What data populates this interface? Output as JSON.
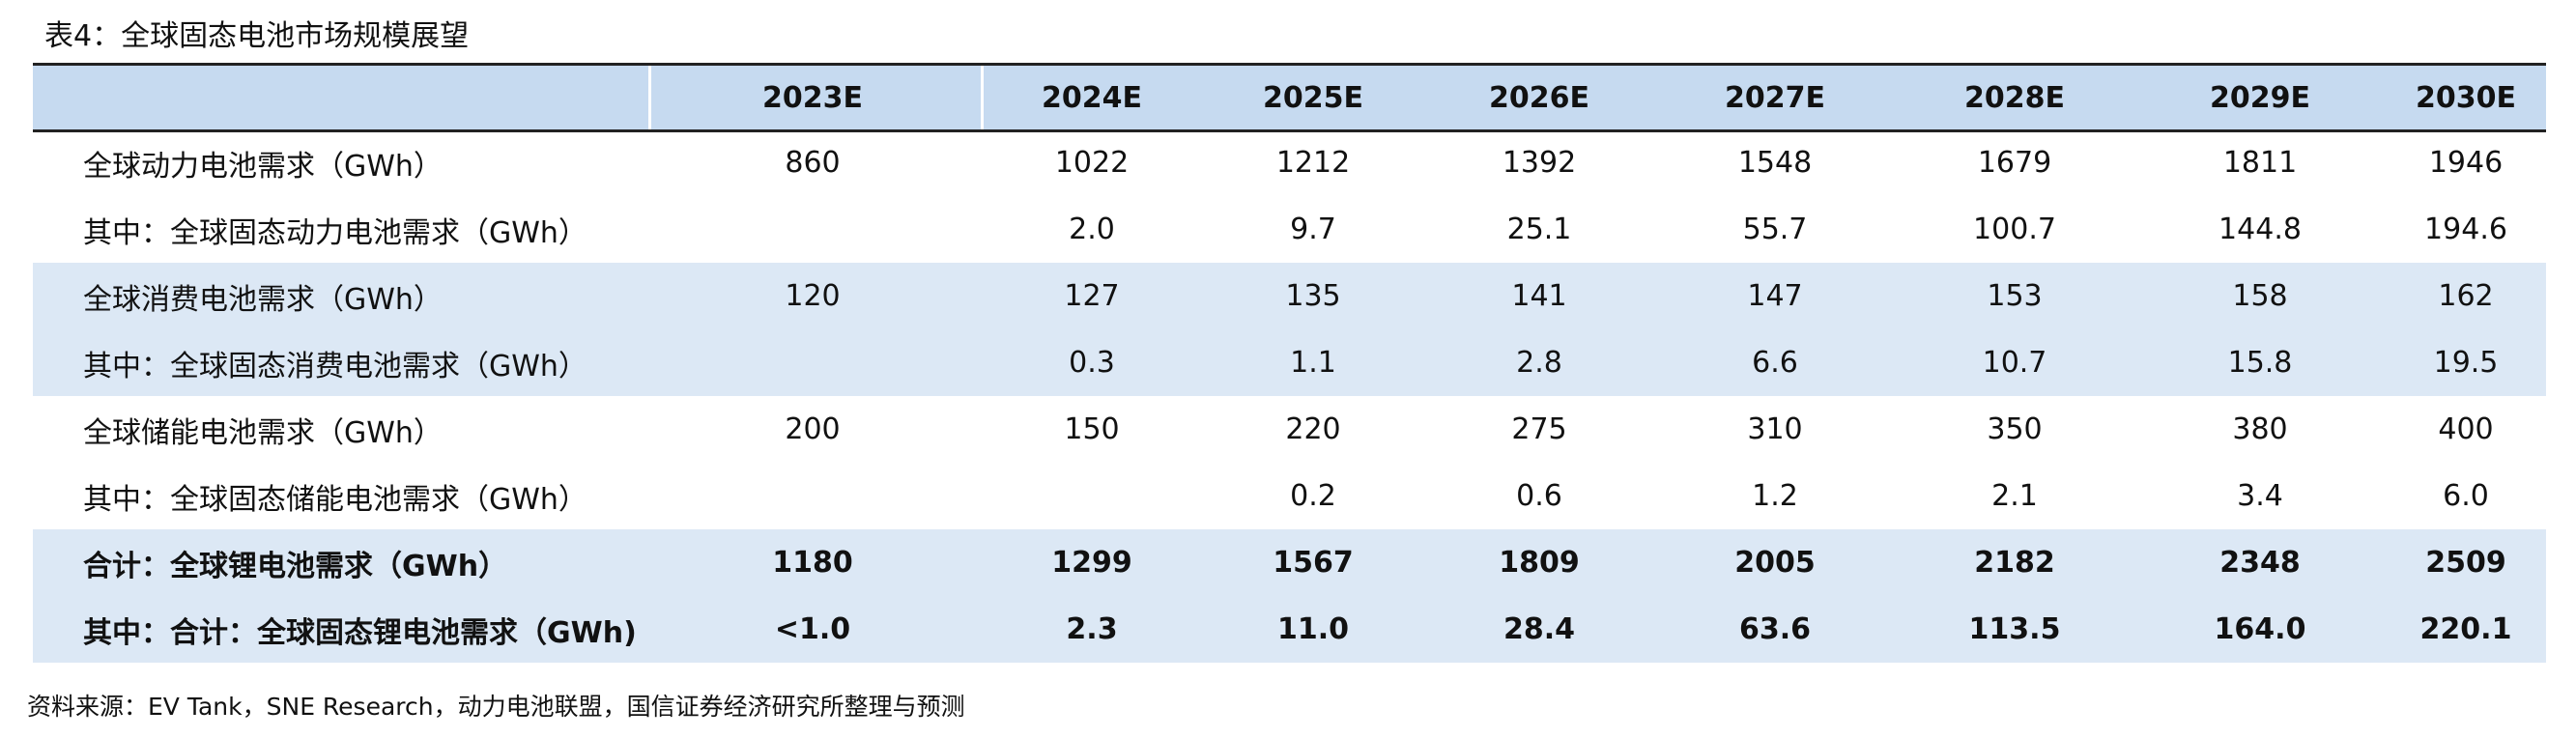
{
  "title": "表4：全球固态电池市场规模展望",
  "table": {
    "columns": [
      "2023E",
      "2024E",
      "2025E",
      "2026E",
      "2027E",
      "2028E",
      "2029E",
      "2030E"
    ],
    "rows": [
      {
        "label": "全球动力电池需求（GWh）",
        "values": [
          "860",
          "1022",
          "1212",
          "1392",
          "1548",
          "1679",
          "1811",
          "1946"
        ]
      },
      {
        "label": "其中：全球固态动力电池需求（GWh）",
        "values": [
          null,
          "2.0",
          "9.7",
          "25.1",
          "55.7",
          "100.7",
          "144.8",
          "194.6"
        ]
      },
      {
        "label": "全球消费电池需求（GWh）",
        "values": [
          "120",
          "127",
          "135",
          "141",
          "147",
          "153",
          "158",
          "162"
        ]
      },
      {
        "label": "其中：全球固态消费电池需求（GWh）",
        "values": [
          null,
          "0.3",
          "1.1",
          "2.8",
          "6.6",
          "10.7",
          "15.8",
          "19.5"
        ]
      },
      {
        "label": "全球储能电池需求（GWh）",
        "values": [
          "200",
          "150",
          "220",
          "275",
          "310",
          "350",
          "380",
          "400"
        ]
      },
      {
        "label": "其中：全球固态储能电池需求（GWh）",
        "values": [
          null,
          null,
          "0.2",
          "0.6",
          "1.2",
          "2.1",
          "3.4",
          "6.0"
        ]
      },
      {
        "label": "合计：全球锂电池需求（GWh）",
        "values": [
          "1180",
          "1299",
          "1567",
          "1809",
          "2005",
          "2182",
          "2348",
          "2509"
        ]
      },
      {
        "label": "其中：合计：全球固态锂电池需求（GWh)",
        "values": [
          "<1.0",
          "2.3",
          "11.0",
          "28.4",
          "63.6",
          "113.5",
          "164.0",
          "220.1"
        ]
      }
    ]
  },
  "source": "资料来源：EV Tank，SNE Research，动力电池联盟，国信证券经济研究所整理与预测"
}
